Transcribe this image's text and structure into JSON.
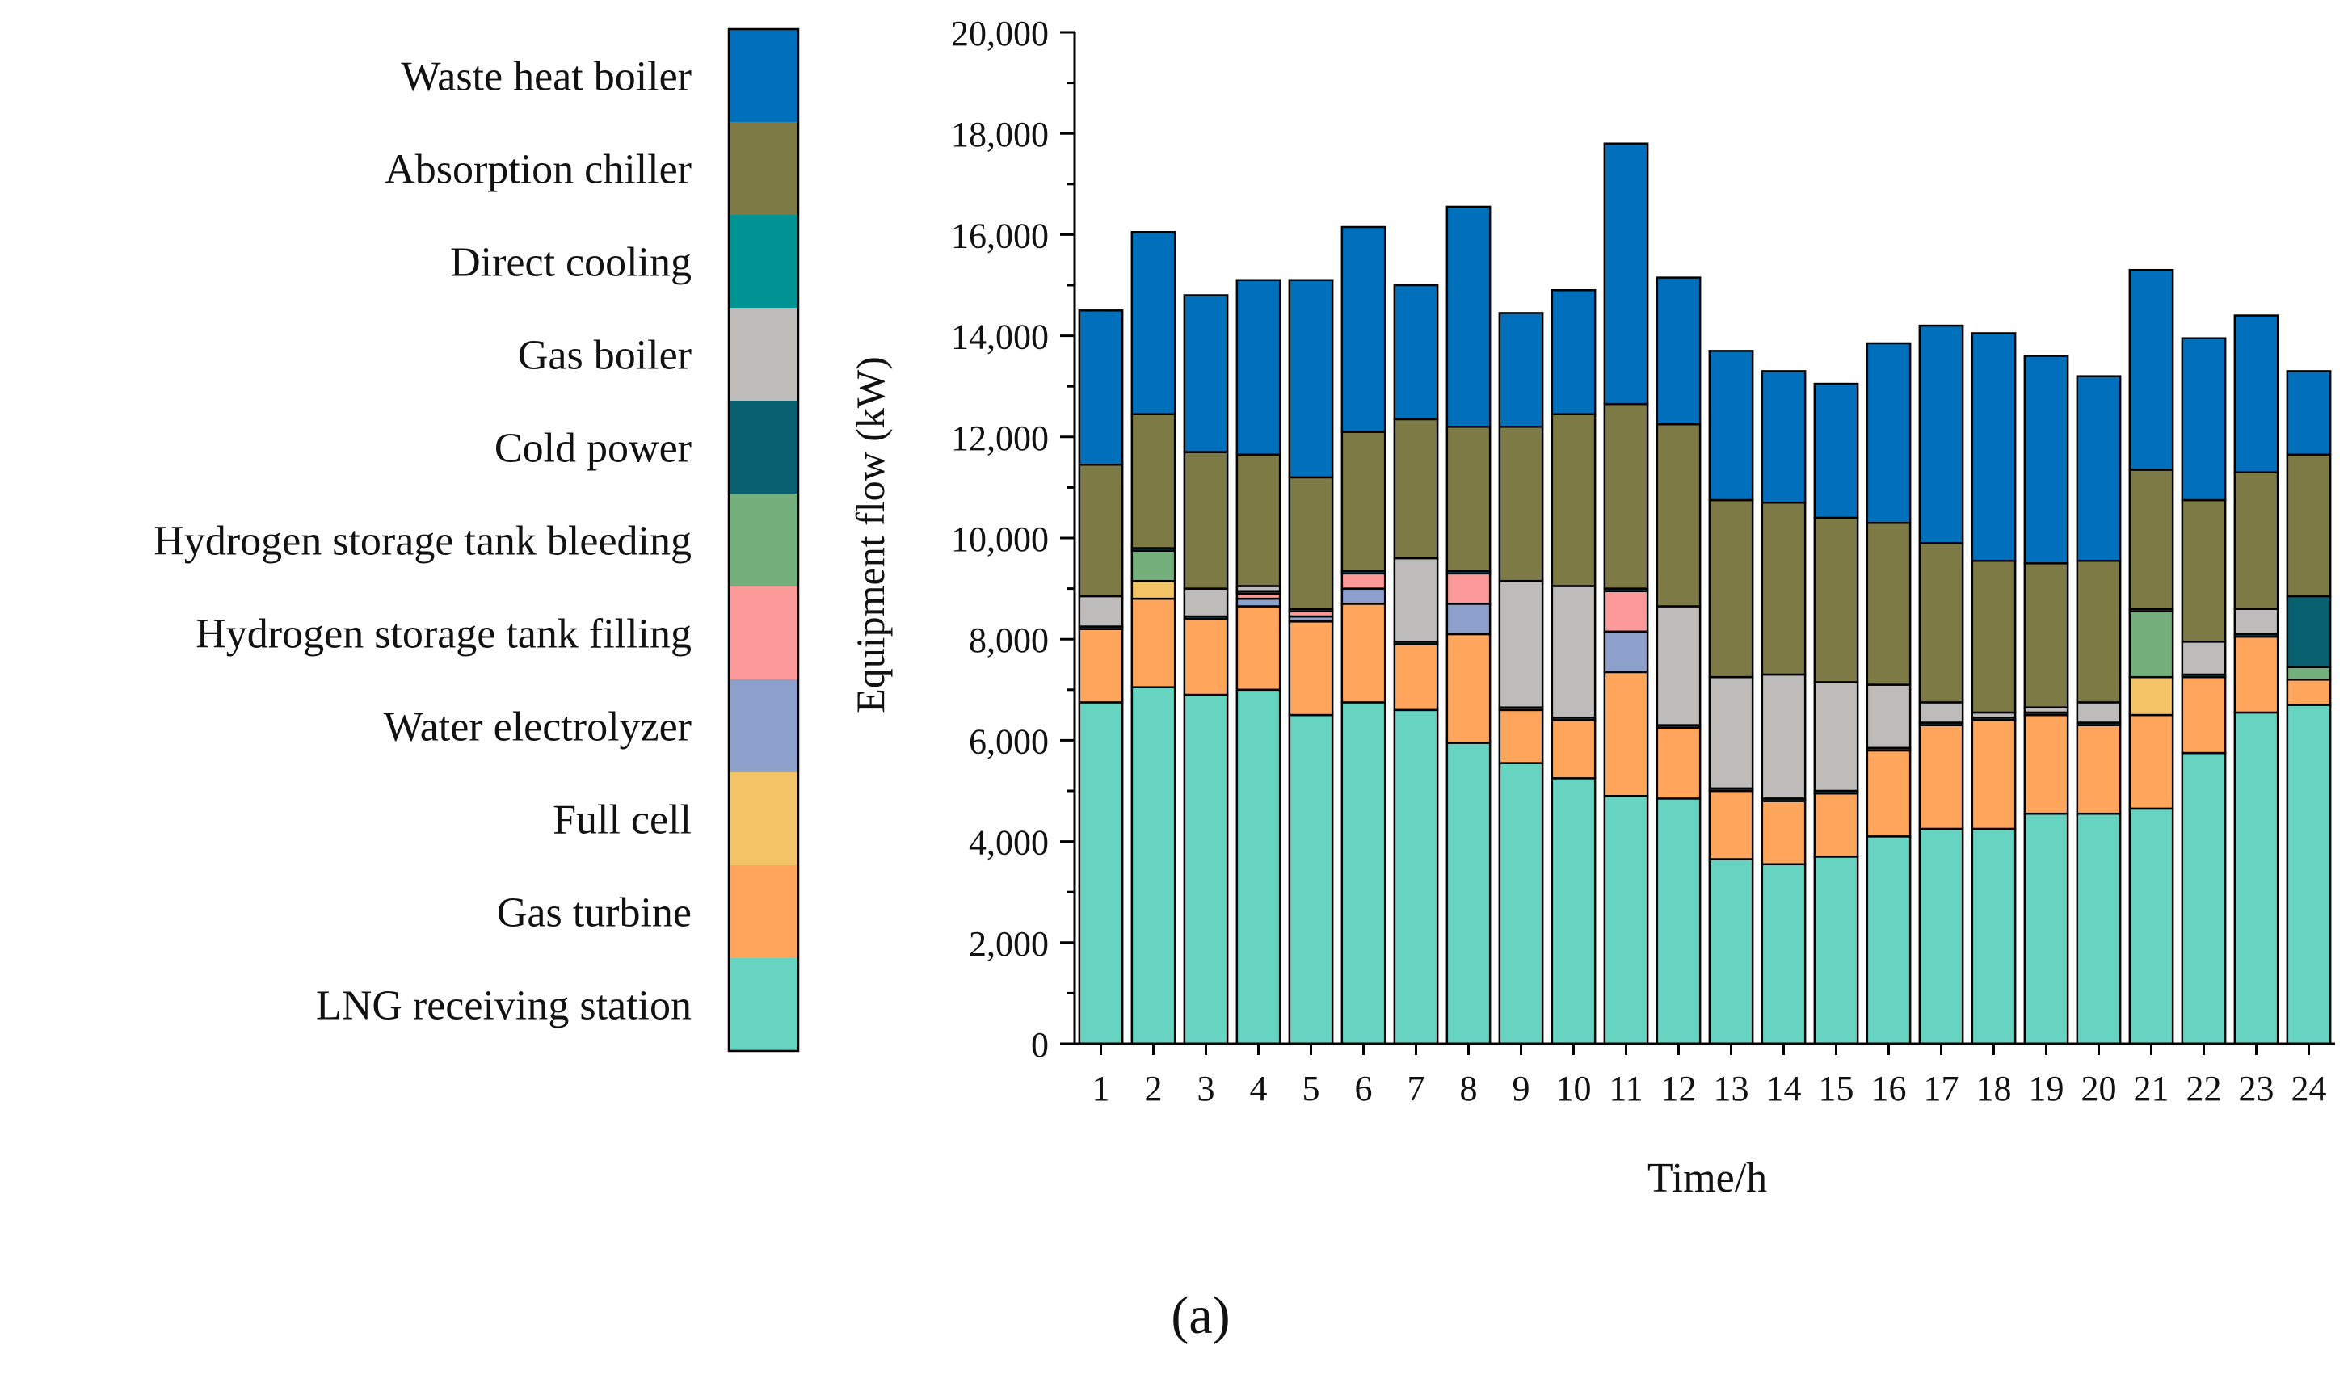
{
  "chart_data": {
    "type": "bar",
    "stacked": true,
    "title": "",
    "xlabel": "Time/h",
    "ylabel": "Equipment flow (kW)",
    "ylim": [
      0,
      20000
    ],
    "yticks": [
      0,
      2000,
      4000,
      6000,
      8000,
      10000,
      12000,
      14000,
      16000,
      18000,
      20000
    ],
    "ytick_labels": [
      "0",
      "2,000",
      "4,000",
      "6,000",
      "8,000",
      "10,000",
      "12,000",
      "14,000",
      "16,000",
      "18,000",
      "20,000"
    ],
    "categories": [
      "1",
      "2",
      "3",
      "4",
      "5",
      "6",
      "7",
      "8",
      "9",
      "10",
      "11",
      "12",
      "13",
      "14",
      "15",
      "16",
      "17",
      "18",
      "19",
      "20",
      "21",
      "22",
      "23",
      "24"
    ],
    "legend_placement": "left",
    "caption": "(a)",
    "series": [
      {
        "name": "LNG receiving station",
        "color": "#66D4C1",
        "values": [
          6750,
          7050,
          6900,
          7000,
          6500,
          6750,
          6600,
          5950,
          5550,
          5250,
          4900,
          4850,
          3650,
          3550,
          3700,
          4100,
          4250,
          4250,
          4550,
          4550,
          4650,
          5750,
          6550,
          6700
        ]
      },
      {
        "name": "Gas turbine",
        "color": "#FFA65C",
        "values": [
          1450,
          1750,
          1500,
          1650,
          1850,
          1950,
          1300,
          2150,
          1050,
          1150,
          2450,
          1400,
          1350,
          1250,
          1250,
          1700,
          2050,
          2150,
          1950,
          1750,
          1850,
          1500,
          1500,
          500
        ]
      },
      {
        "name": "Full cell",
        "color": "#F3C466",
        "values": [
          0,
          350,
          0,
          0,
          0,
          0,
          0,
          0,
          0,
          0,
          0,
          0,
          0,
          0,
          0,
          0,
          0,
          0,
          0,
          0,
          750,
          0,
          0,
          0
        ]
      },
      {
        "name": "Water electrolyzer",
        "color": "#8DA0CB",
        "values": [
          0,
          0,
          0,
          150,
          100,
          300,
          0,
          600,
          0,
          0,
          800,
          0,
          0,
          0,
          0,
          0,
          0,
          0,
          0,
          0,
          0,
          0,
          0,
          0
        ]
      },
      {
        "name": "Hydrogen storage tank filling",
        "color": "#FC9A9A",
        "values": [
          0,
          0,
          0,
          100,
          100,
          300,
          0,
          600,
          0,
          0,
          800,
          0,
          0,
          0,
          0,
          0,
          0,
          0,
          0,
          0,
          0,
          0,
          0,
          0
        ]
      },
      {
        "name": "Hydrogen storage tank bleeding",
        "color": "#74B07B",
        "values": [
          0,
          600,
          0,
          0,
          0,
          0,
          0,
          0,
          0,
          0,
          0,
          0,
          0,
          0,
          0,
          0,
          0,
          0,
          0,
          0,
          1300,
          0,
          0,
          250
        ]
      },
      {
        "name": "Cold power",
        "color": "#075F70",
        "values": [
          50,
          50,
          50,
          50,
          50,
          50,
          50,
          50,
          50,
          50,
          50,
          50,
          50,
          50,
          50,
          50,
          50,
          50,
          50,
          50,
          50,
          50,
          50,
          1400
        ]
      },
      {
        "name": "Gas boiler",
        "color": "#BEBBBB",
        "values": [
          600,
          0,
          550,
          100,
          0,
          0,
          1650,
          0,
          2500,
          2600,
          0,
          2350,
          2200,
          2450,
          2150,
          1250,
          400,
          100,
          100,
          400,
          0,
          650,
          500,
          0
        ]
      },
      {
        "name": "Direct cooling",
        "color": "#009393",
        "values": [
          0,
          0,
          0,
          0,
          0,
          0,
          0,
          0,
          0,
          0,
          0,
          0,
          0,
          0,
          0,
          0,
          0,
          0,
          0,
          0,
          0,
          0,
          0,
          0
        ]
      },
      {
        "name": "Absorption chiller",
        "color": "#7D7A45",
        "values": [
          2600,
          2650,
          2700,
          2600,
          2600,
          2750,
          2750,
          2850,
          3050,
          3400,
          3650,
          3600,
          3500,
          3400,
          3250,
          3200,
          3150,
          3000,
          2850,
          2800,
          2750,
          2800,
          2700,
          2800
        ]
      },
      {
        "name": "Waste heat boiler",
        "color": "#0070BC",
        "values": [
          3050,
          3600,
          3100,
          3450,
          3900,
          4050,
          2650,
          4350,
          2250,
          2450,
          5150,
          2900,
          2950,
          2600,
          2650,
          3550,
          4300,
          4500,
          4100,
          3650,
          3950,
          3200,
          3100,
          1650
        ]
      }
    ]
  }
}
